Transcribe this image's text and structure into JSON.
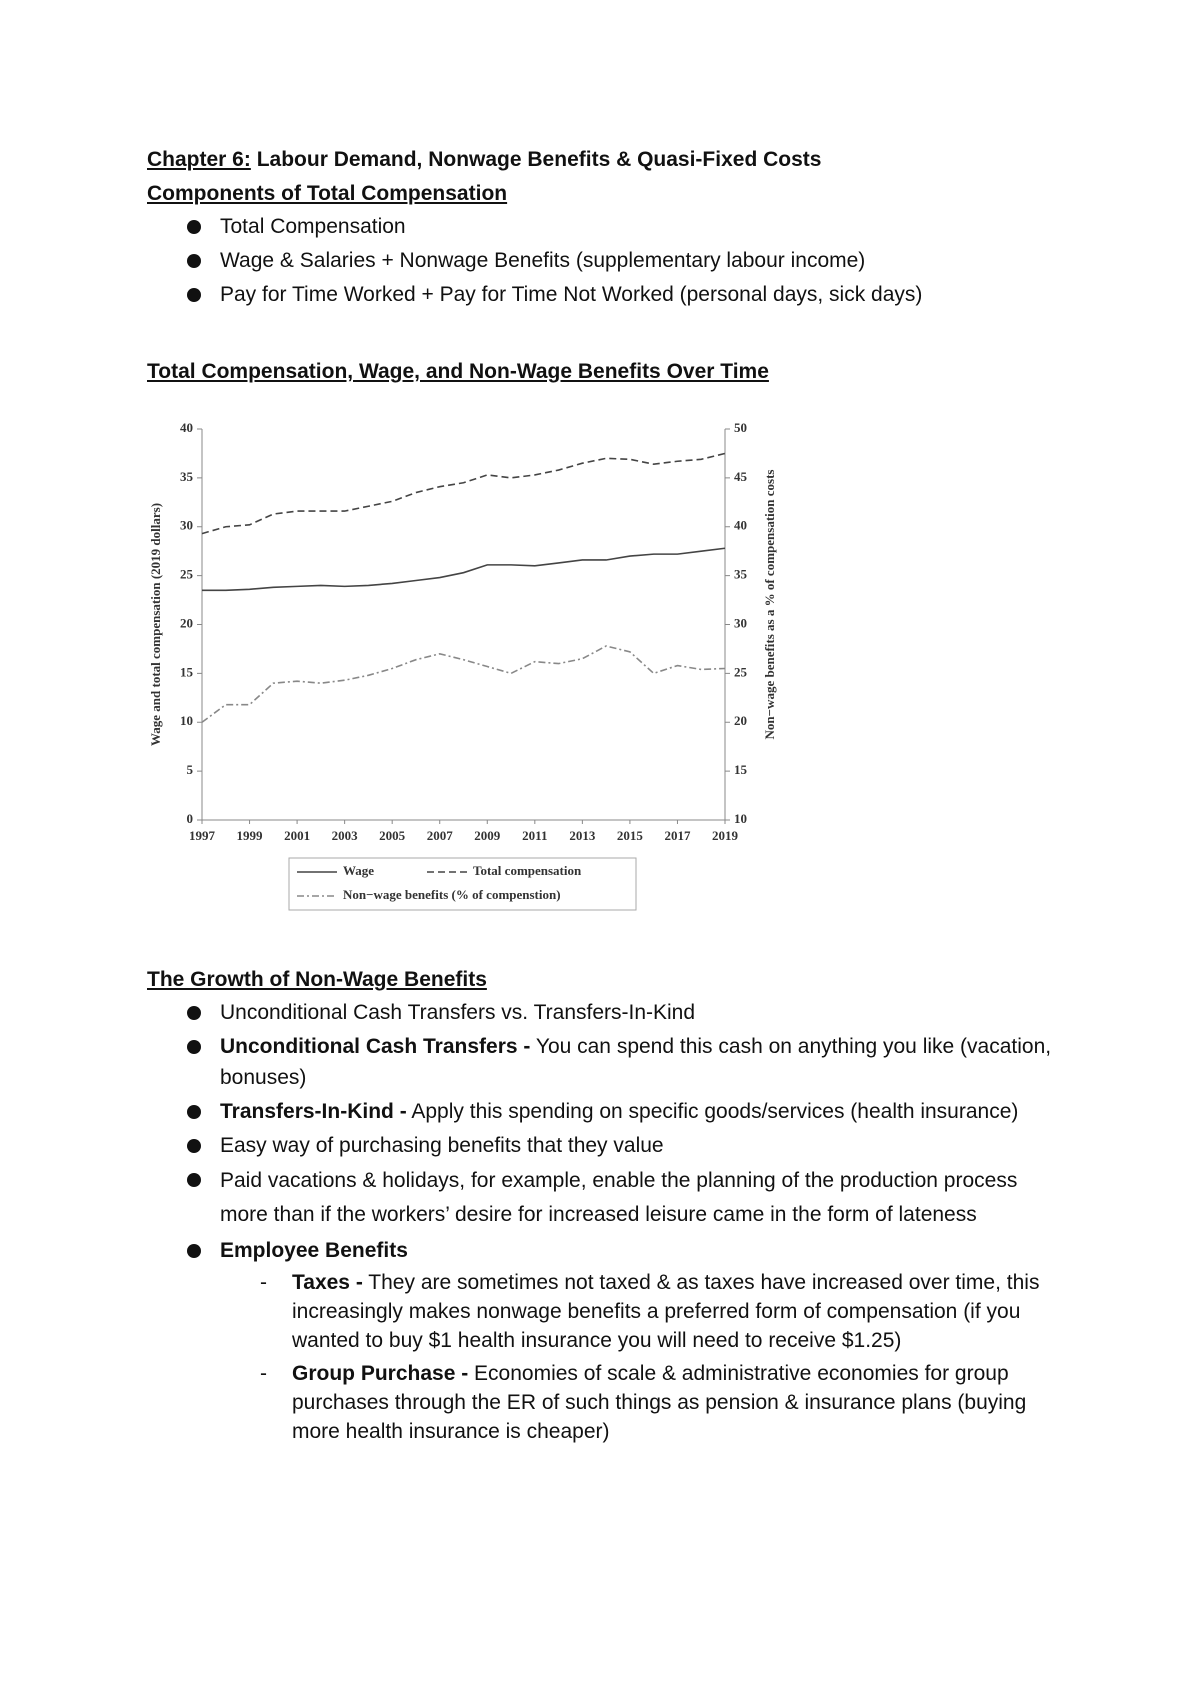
{
  "header": {
    "chapter": "Chapter 6:",
    "title": "Labour Demand, Nonwage Benefits & Quasi-Fixed Costs"
  },
  "section1": {
    "heading": "Components of Total Compensation",
    "bullets": [
      "Total Compensation",
      "Wage & Salaries + Nonwage Benefits (supplementary labour income)",
      "Pay for Time Worked + Pay for Time Not Worked (personal days, sick days)"
    ]
  },
  "chart_data": {
    "type": "line",
    "title": "Total Compensation, Wage, and Non-Wage Benefits Over Time",
    "y_label": "Wage and total compensation (2019 dollars)",
    "y2_label": "Non−wage benefits as a % of compensation costs",
    "x": [
      1997,
      1998,
      1999,
      2000,
      2001,
      2002,
      2003,
      2004,
      2005,
      2006,
      2007,
      2008,
      2009,
      2010,
      2011,
      2012,
      2013,
      2014,
      2015,
      2016,
      2017,
      2018,
      2019
    ],
    "xlim": [
      1997,
      2019
    ],
    "xticks": [
      1997,
      1999,
      2001,
      2003,
      2005,
      2007,
      2009,
      2011,
      2013,
      2015,
      2017,
      2019
    ],
    "ylim": [
      0,
      40
    ],
    "yticks": [
      0,
      5,
      10,
      15,
      20,
      25,
      30,
      35,
      40
    ],
    "y2lim": [
      10,
      50
    ],
    "y2ticks": [
      10,
      15,
      20,
      25,
      30,
      35,
      40,
      45,
      50
    ],
    "legend": "bottom",
    "series": [
      {
        "name": "Wage",
        "color": "#444444",
        "style": "solid",
        "values": [
          23.5,
          23.5,
          23.6,
          23.8,
          23.9,
          24.0,
          23.9,
          24.0,
          24.2,
          24.5,
          24.8,
          25.3,
          26.1,
          26.1,
          26.0,
          26.3,
          26.6,
          26.6,
          27.0,
          27.2,
          27.2,
          27.5,
          27.8
        ]
      },
      {
        "name": "Total compensation",
        "color": "#444444",
        "style": "dashed",
        "values": [
          29.3,
          30.0,
          30.2,
          31.3,
          31.6,
          31.6,
          31.6,
          32.1,
          32.6,
          33.5,
          34.1,
          34.5,
          35.3,
          35.0,
          35.3,
          35.8,
          36.5,
          37.0,
          36.9,
          36.4,
          36.7,
          36.9,
          37.5
        ]
      },
      {
        "name": "Non−wage benefits (% of compenstion)",
        "color": "#888888",
        "style": "dashdot",
        "axis": "y2",
        "values": [
          20.0,
          21.8,
          21.8,
          24.0,
          24.2,
          24.0,
          24.3,
          24.8,
          25.5,
          26.4,
          27.0,
          26.4,
          25.7,
          25.0,
          26.2,
          26.0,
          26.5,
          27.8,
          27.2,
          25.0,
          25.8,
          25.4,
          25.5
        ]
      }
    ]
  },
  "section2": {
    "heading": "The Growth of Non-Wage Benefits",
    "bullets": [
      {
        "text": "Unconditional Cash Transfers vs. Transfers-In-Kind"
      },
      {
        "bold": "Unconditional Cash Transfers -",
        "text": "You can spend this cash on anything you like (vacation, bonuses)"
      },
      {
        "bold": "Transfers-In-Kind -",
        "text": "Apply this spending on specific goods/services (health insurance)"
      },
      {
        "text": "Easy way of purchasing benefits that they value"
      },
      {
        "text": "Paid vacations & holidays, for example, enable the planning of the production process more than if the workers’ desire for increased leisure came in the form of lateness"
      },
      {
        "bold": "Employee Benefits",
        "sub": [
          {
            "bold": "Taxes -",
            "text": "They are sometimes not taxed & as taxes have increased over time, this increasingly makes nonwage benefits a preferred form of compensation (if you wanted to buy $1 health insurance you will need to receive $1.25)"
          },
          {
            "bold": "Group Purchase -",
            "text": "Economies of scale & administrative economies for group purchases through the ER of such things as pension & insurance plans (buying more health insurance is cheaper)"
          }
        ]
      }
    ]
  }
}
